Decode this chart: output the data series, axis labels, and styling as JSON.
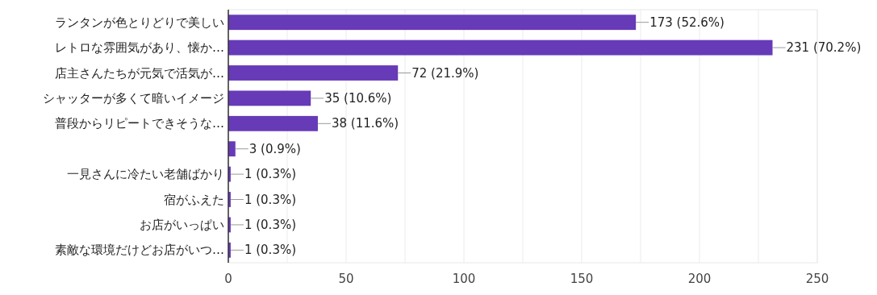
{
  "chart_data": {
    "type": "bar",
    "orientation": "horizontal",
    "categories": [
      "ランタンが色とりどりで美しい",
      "レトロな雰囲気があり、懐か…",
      "店主さんたちが元気で活気が…",
      "シャッターが多くて暗いイメージ",
      "普段からリピートできそうな…",
      null,
      "一見さんに冷たい老舗ばかり",
      "宿がふえた",
      "お店がいっぱい",
      "素敵な環境だけどお店がいつ…"
    ],
    "values": [
      173,
      231,
      72,
      35,
      38,
      3,
      1,
      1,
      1,
      1
    ],
    "value_labels": [
      "173 (52.6%)",
      "231 (70.2%)",
      "72 (21.9%)",
      "35 (10.6%)",
      "38 (11.6%)",
      "3 (0.9%)",
      "1 (0.3%)",
      "1 (0.3%)",
      "1 (0.3%)",
      "1 (0.3%)"
    ],
    "color": "#673ab7",
    "xlim": [
      0,
      250
    ],
    "xticks": [
      0,
      {
        "value": 25,
        "label": null
      },
      50,
      {
        "value": 75,
        "label": null
      },
      100,
      {
        "value": 125,
        "label": null
      },
      150,
      {
        "value": 175,
        "label": null
      },
      200,
      {
        "value": 225,
        "label": null
      },
      250
    ],
    "grid": "x"
  }
}
